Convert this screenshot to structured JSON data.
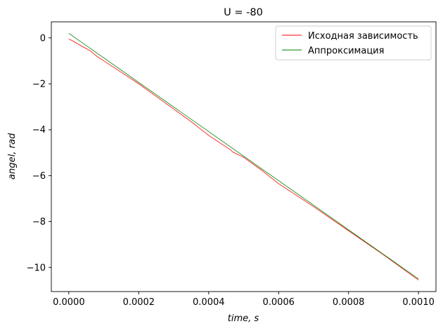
{
  "chart_data": {
    "type": "line",
    "title": "U = -80",
    "xlabel": "time, s",
    "ylabel": "angel, rad",
    "xlim": [
      -5e-05,
      0.00105
    ],
    "ylim": [
      -11.05,
      0.7
    ],
    "x_ticks": [
      0.0,
      0.0002,
      0.0004,
      0.0006,
      0.0008,
      0.001
    ],
    "x_tick_labels": [
      "0.0000",
      "0.0002",
      "0.0004",
      "0.0006",
      "0.0008",
      "0.0010"
    ],
    "y_ticks": [
      0,
      -2,
      -4,
      -6,
      -8,
      -10
    ],
    "y_tick_labels": [
      "0",
      "−2",
      "−4",
      "−6",
      "−8",
      "−10"
    ],
    "grid": false,
    "legend_position": "top-right",
    "series": [
      {
        "name": "Исходная зависимость",
        "color": "#ff0000",
        "x": [
          0.0,
          1e-05,
          3e-05,
          6e-05,
          8e-05,
          0.0001,
          0.00015,
          0.0002,
          0.00025,
          0.0003,
          0.00035,
          0.0004,
          0.00045,
          0.00046,
          0.00047,
          0.0005,
          0.00055,
          0.0006,
          0.00065,
          0.0007,
          0.0008,
          0.0009,
          0.001
        ],
        "values": [
          -0.05,
          -0.12,
          -0.3,
          -0.55,
          -0.8,
          -1.0,
          -1.5,
          -2.0,
          -2.55,
          -3.1,
          -3.65,
          -4.25,
          -4.75,
          -4.85,
          -4.98,
          -5.2,
          -5.75,
          -6.35,
          -6.85,
          -7.35,
          -8.4,
          -9.45,
          -10.55
        ]
      },
      {
        "name": "Аппроксимация",
        "color": "#008000",
        "x": [
          0.0,
          0.001
        ],
        "values": [
          0.2,
          -10.5
        ]
      }
    ]
  }
}
